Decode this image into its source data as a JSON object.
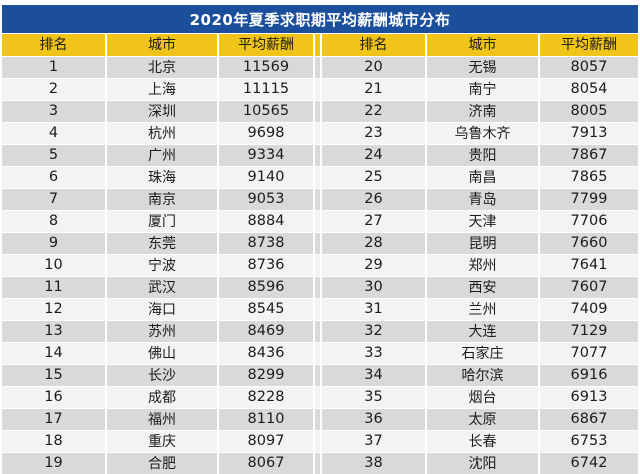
{
  "title": "2020年夏季求职期平均薪酬城市分布",
  "colors": {
    "title_bg": "#1b4f9c",
    "header_bg": "#f0c419",
    "row_dark": "#d9d9d9",
    "row_light": "#f3f3f3",
    "title_text": "#ffffff",
    "cell_text": "#1c1c1c"
  },
  "chart_data": {
    "type": "table",
    "title": "2020年夏季求职期平均薪酬城市分布",
    "columns": [
      "排名",
      "城市",
      "平均薪酬",
      "排名",
      "城市",
      "平均薪酬"
    ],
    "rows": [
      [
        "1",
        "北京",
        "11569",
        "20",
        "无锡",
        "8057"
      ],
      [
        "2",
        "上海",
        "11115",
        "21",
        "南宁",
        "8054"
      ],
      [
        "3",
        "深圳",
        "10565",
        "22",
        "济南",
        "8005"
      ],
      [
        "4",
        "杭州",
        "9698",
        "23",
        "乌鲁木齐",
        "7913"
      ],
      [
        "5",
        "广州",
        "9334",
        "24",
        "贵阳",
        "7867"
      ],
      [
        "6",
        "珠海",
        "9140",
        "25",
        "南昌",
        "7865"
      ],
      [
        "7",
        "南京",
        "9053",
        "26",
        "青岛",
        "7799"
      ],
      [
        "8",
        "厦门",
        "8884",
        "27",
        "天津",
        "7706"
      ],
      [
        "9",
        "东莞",
        "8738",
        "28",
        "昆明",
        "7660"
      ],
      [
        "10",
        "宁波",
        "8736",
        "29",
        "郑州",
        "7641"
      ],
      [
        "11",
        "武汉",
        "8596",
        "30",
        "西安",
        "7607"
      ],
      [
        "12",
        "海口",
        "8545",
        "31",
        "兰州",
        "7409"
      ],
      [
        "13",
        "苏州",
        "8469",
        "32",
        "大连",
        "7129"
      ],
      [
        "14",
        "佛山",
        "8436",
        "33",
        "石家庄",
        "7077"
      ],
      [
        "15",
        "长沙",
        "8299",
        "34",
        "哈尔滨",
        "6916"
      ],
      [
        "16",
        "成都",
        "8228",
        "35",
        "烟台",
        "6913"
      ],
      [
        "17",
        "福州",
        "8110",
        "36",
        "太原",
        "6867"
      ],
      [
        "18",
        "重庆",
        "8097",
        "37",
        "长春",
        "6753"
      ],
      [
        "19",
        "合肥",
        "8067",
        "38",
        "沈阳",
        "6742"
      ]
    ]
  }
}
